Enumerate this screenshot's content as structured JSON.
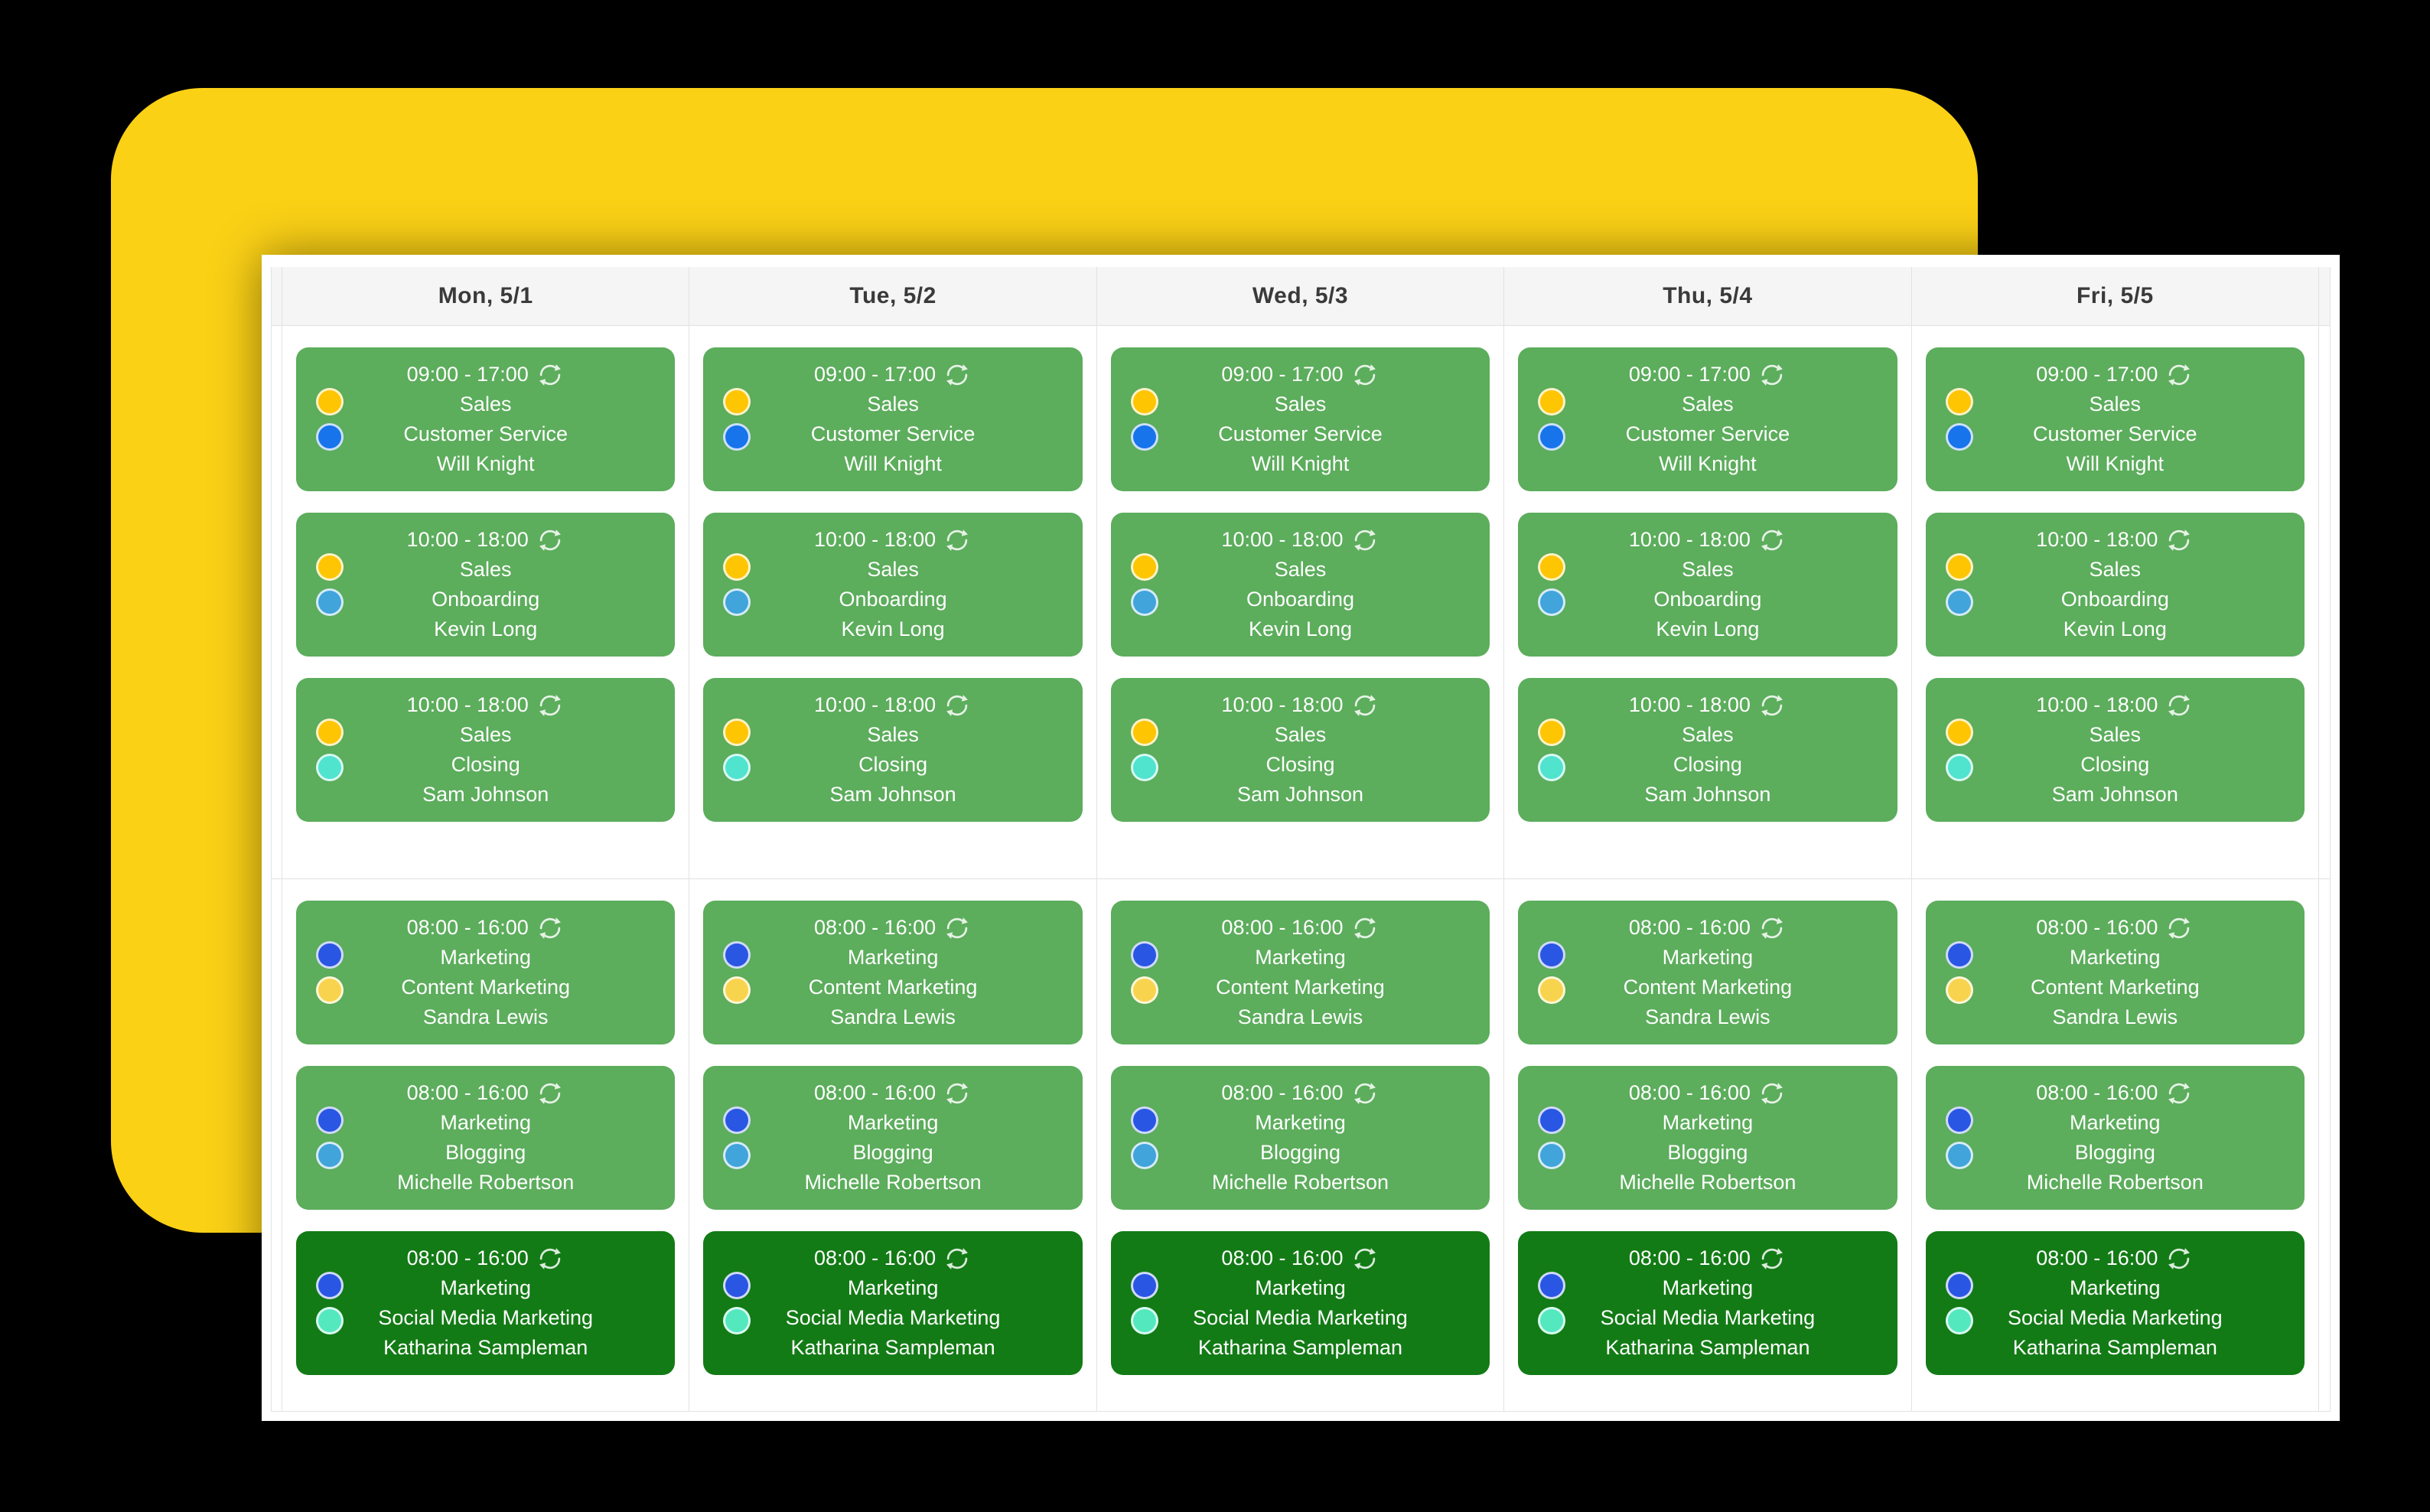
{
  "theme": {
    "page_bg": "#000000",
    "backdrop_color": "#FBD116",
    "panel_bg": "#FFFFFF",
    "header_bg": "#F5F5F5",
    "header_text": "#3A3A3A",
    "grid_border": "#E2E2E2",
    "card_text": "#FFFFFF"
  },
  "icons": {
    "recurrence": "sync-circular-arrows"
  },
  "calendar": {
    "days": [
      "Mon, 5/1",
      "Tue, 5/2",
      "Wed, 5/3",
      "Thu, 5/4",
      "Fri, 5/5"
    ],
    "groups": [
      {
        "name": "sales-shifts",
        "shifts": [
          {
            "time": "09:00 - 17:00",
            "department": "Sales",
            "role": "Customer Service",
            "employee": "Will Knight",
            "recurring": true,
            "card_color": "#5CAD5C",
            "department_dot_color": "#FDC502",
            "role_dot_color": "#1774EB"
          },
          {
            "time": "10:00 - 18:00",
            "department": "Sales",
            "role": "Onboarding",
            "employee": "Kevin Long",
            "recurring": true,
            "card_color": "#5CAD5C",
            "department_dot_color": "#FDC502",
            "role_dot_color": "#41A4DB"
          },
          {
            "time": "10:00 - 18:00",
            "department": "Sales",
            "role": "Closing",
            "employee": "Sam Johnson",
            "recurring": true,
            "card_color": "#5CAD5C",
            "department_dot_color": "#FDC502",
            "role_dot_color": "#50E3CE"
          }
        ]
      },
      {
        "name": "marketing-shifts",
        "shifts": [
          {
            "time": "08:00 - 16:00",
            "department": "Marketing",
            "role": "Content Marketing",
            "employee": "Sandra Lewis",
            "recurring": true,
            "card_color": "#5CAD5C",
            "department_dot_color": "#2A56E4",
            "role_dot_color": "#F8D44E"
          },
          {
            "time": "08:00 - 16:00",
            "department": "Marketing",
            "role": "Blogging",
            "employee": "Michelle Robertson",
            "recurring": true,
            "card_color": "#5CAD5C",
            "department_dot_color": "#2A56E4",
            "role_dot_color": "#41A4DB"
          },
          {
            "time": "08:00 - 16:00",
            "department": "Marketing",
            "role": "Social Media Marketing",
            "employee": "Katharina Sampleman",
            "recurring": true,
            "card_color": "#137B15",
            "department_dot_color": "#2A56E4",
            "role_dot_color": "#54E8BE"
          }
        ]
      }
    ]
  }
}
